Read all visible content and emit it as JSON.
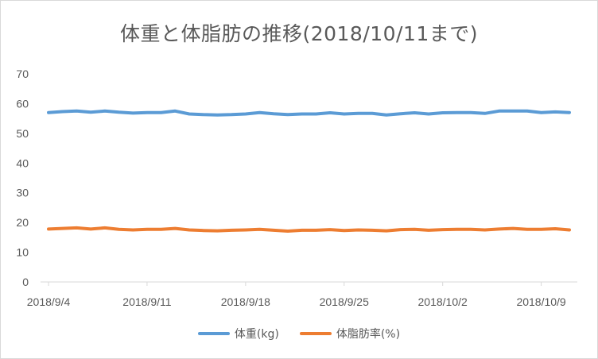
{
  "chart_data": {
    "type": "line",
    "title": "体重と体脂肪の推移(2018/10/11まで)",
    "xlabel": "",
    "ylabel": "",
    "ylim": [
      0,
      70
    ],
    "yticks": [
      0,
      10,
      20,
      30,
      40,
      50,
      60,
      70
    ],
    "xticks": [
      "2018/9/4",
      "2018/9/11",
      "2018/9/18",
      "2018/9/25",
      "2018/10/2",
      "2018/10/9"
    ],
    "grid": false,
    "legend_position": "bottom",
    "x": [
      "2018/9/4",
      "2018/9/5",
      "2018/9/6",
      "2018/9/7",
      "2018/9/8",
      "2018/9/9",
      "2018/9/10",
      "2018/9/11",
      "2018/9/12",
      "2018/9/13",
      "2018/9/14",
      "2018/9/15",
      "2018/9/16",
      "2018/9/17",
      "2018/9/18",
      "2018/9/19",
      "2018/9/20",
      "2018/9/21",
      "2018/9/22",
      "2018/9/23",
      "2018/9/24",
      "2018/9/25",
      "2018/9/26",
      "2018/9/27",
      "2018/9/28",
      "2018/9/29",
      "2018/9/30",
      "2018/10/1",
      "2018/10/2",
      "2018/10/3",
      "2018/10/4",
      "2018/10/5",
      "2018/10/6",
      "2018/10/7",
      "2018/10/8",
      "2018/10/9",
      "2018/10/10",
      "2018/10/11"
    ],
    "series": [
      {
        "name": "体重(kg)",
        "color": "#5b9bd5",
        "values": [
          57.0,
          57.3,
          57.5,
          57.1,
          57.5,
          57.1,
          56.8,
          57.0,
          57.0,
          57.5,
          56.5,
          56.3,
          56.2,
          56.3,
          56.5,
          57.0,
          56.6,
          56.3,
          56.5,
          56.5,
          56.9,
          56.5,
          56.7,
          56.7,
          56.2,
          56.6,
          56.9,
          56.5,
          56.9,
          57.0,
          57.0,
          56.7,
          57.5,
          57.5,
          57.5,
          57.0,
          57.2,
          57.0
        ]
      },
      {
        "name": "体脂肪率(%)",
        "color": "#ed7d31",
        "values": [
          17.8,
          18.0,
          18.2,
          17.8,
          18.2,
          17.7,
          17.5,
          17.7,
          17.7,
          18.0,
          17.5,
          17.3,
          17.2,
          17.4,
          17.5,
          17.7,
          17.4,
          17.1,
          17.4,
          17.4,
          17.6,
          17.3,
          17.5,
          17.4,
          17.2,
          17.6,
          17.7,
          17.4,
          17.6,
          17.7,
          17.7,
          17.5,
          17.8,
          18.0,
          17.7,
          17.7,
          17.9,
          17.5
        ]
      }
    ]
  }
}
